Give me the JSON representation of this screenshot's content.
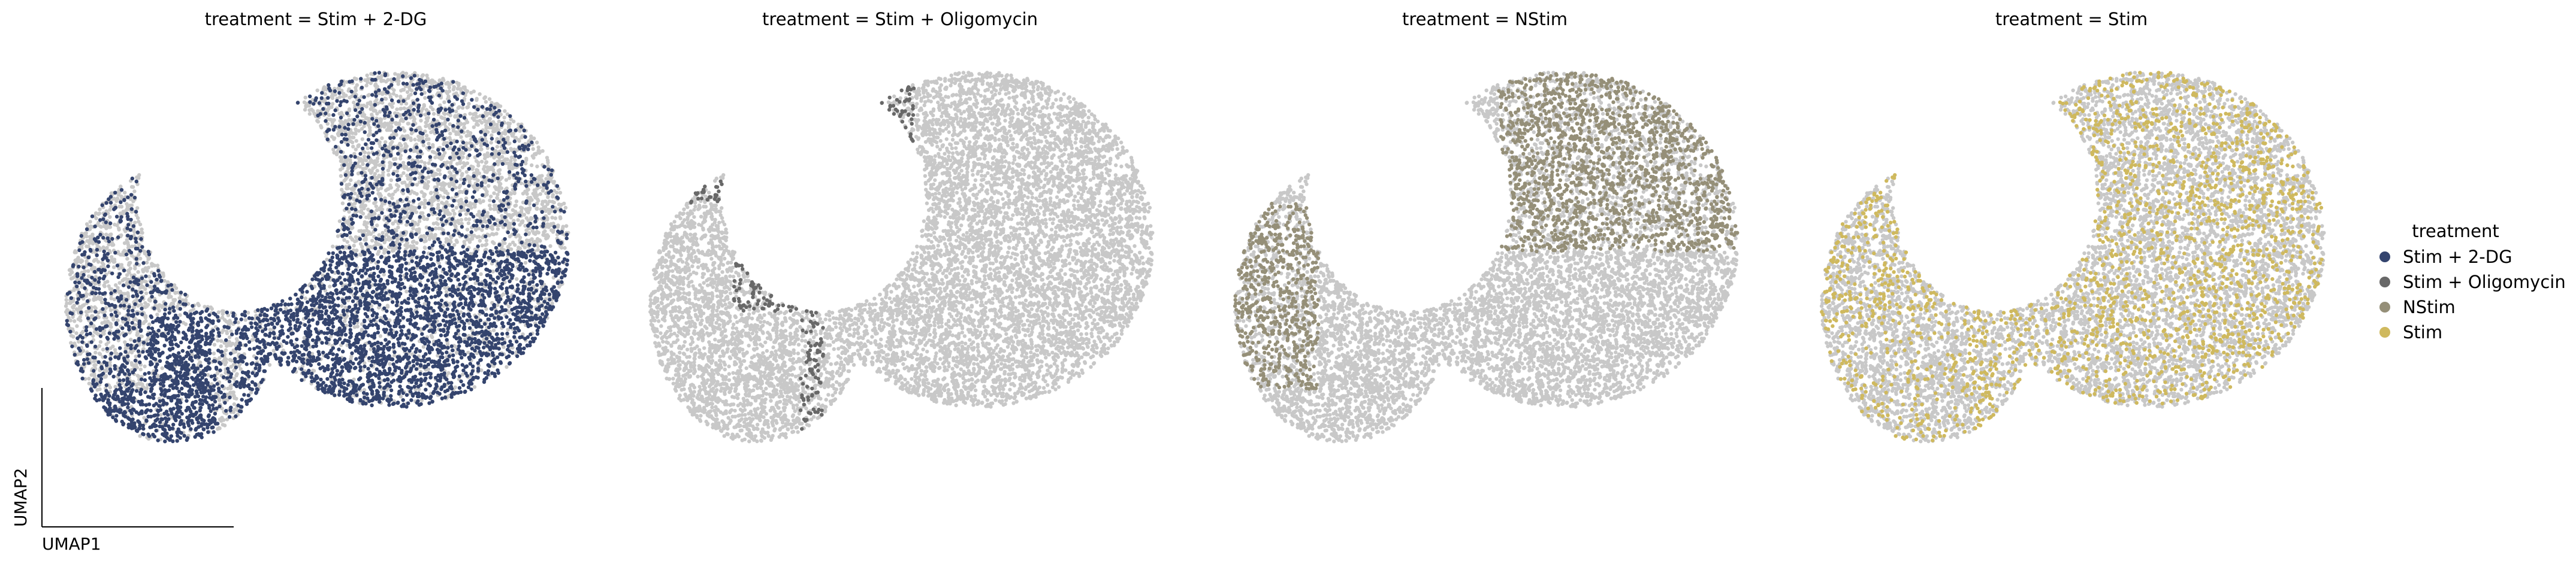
{
  "chart_data": {
    "type": "scatter",
    "xlabel": "UMAP1",
    "ylabel": "UMAP2",
    "legend": {
      "title": "treatment",
      "placement": "right",
      "entries": [
        {
          "label": "Stim + 2-DG",
          "color": "#34446e"
        },
        {
          "label": "Stim + Oligomycin",
          "color": "#686868"
        },
        {
          "label": "NStim",
          "color": "#958f78"
        },
        {
          "label": "Stim",
          "color": "#cfb95e"
        }
      ]
    },
    "background_color": "#c8c8c8",
    "panels": [
      {
        "title": "treatment = Stim + 2-DG",
        "highlight": "Stim + 2-DG",
        "color": "#34446e"
      },
      {
        "title": "treatment = Stim + Oligomycin",
        "highlight": "Stim + Oligomycin",
        "color": "#686868"
      },
      {
        "title": "treatment = NStim",
        "highlight": "NStim",
        "color": "#958f78"
      },
      {
        "title": "treatment = Stim",
        "highlight": "Stim",
        "color": "#cfb95e"
      }
    ]
  }
}
